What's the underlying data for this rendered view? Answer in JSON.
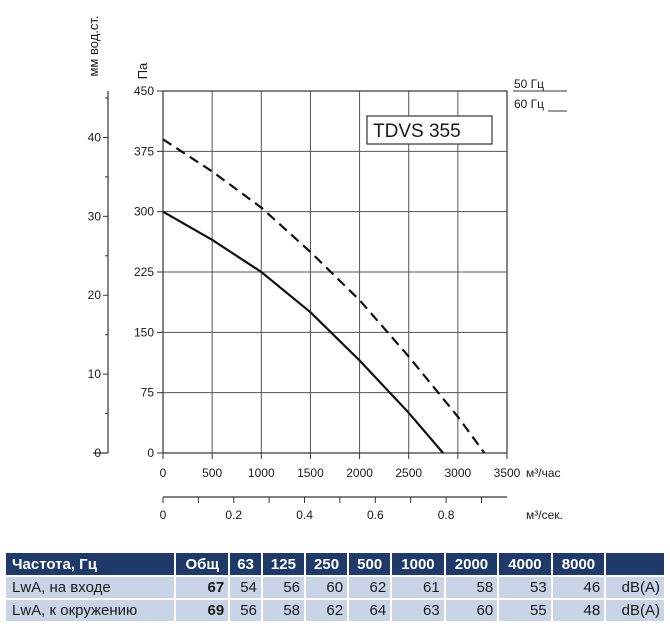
{
  "chart_data": {
    "type": "line",
    "title": "TDVS 355",
    "ylabel_left": "мм вод.ст.",
    "ylabel": "Па",
    "xlabel": "м³/час",
    "xlabel_secondary": "м³/сек.",
    "xlim": [
      0,
      3500
    ],
    "ylim": [
      0,
      450
    ],
    "x_ticks": [
      "0",
      "500",
      "1000",
      "1500",
      "2000",
      "2500",
      "3000",
      "3500"
    ],
    "y_ticks": [
      "0",
      "75",
      "150",
      "225",
      "300",
      "375",
      "450"
    ],
    "y2_ticks": [
      "0",
      "10",
      "20",
      "30",
      "40"
    ],
    "x2_ticks": [
      "0",
      "0.2",
      "0.4",
      "0.6",
      "0.8"
    ],
    "grid": true,
    "legend": [
      "50 Гц",
      "60 Гц"
    ],
    "series": [
      {
        "name": "50 Гц",
        "style": "solid",
        "x": [
          0,
          500,
          1000,
          1500,
          2000,
          2500,
          2850
        ],
        "y": [
          300,
          265,
          225,
          175,
          115,
          50,
          0
        ]
      },
      {
        "name": "60 Гц",
        "style": "dashed",
        "x": [
          0,
          500,
          1000,
          1500,
          2000,
          2500,
          3000,
          3270
        ],
        "y": [
          390,
          350,
          305,
          250,
          190,
          120,
          45,
          0
        ]
      }
    ]
  },
  "table": {
    "header": [
      "Частота, Гц",
      "Общ",
      "63",
      "125",
      "250",
      "500",
      "1000",
      "2000",
      "4000",
      "8000",
      ""
    ],
    "rows": [
      {
        "label": "LwA, на входе",
        "total": "67",
        "values": [
          "54",
          "56",
          "60",
          "62",
          "61",
          "58",
          "53",
          "46"
        ],
        "unit": "dB(A)"
      },
      {
        "label": "LwA, к окружению",
        "total": "69",
        "values": [
          "56",
          "58",
          "62",
          "64",
          "63",
          "60",
          "55",
          "48"
        ],
        "unit": "dB(A)"
      }
    ]
  },
  "colors": {
    "header_bg": "#1f3a68",
    "row_bg": "#c9d4e6"
  }
}
